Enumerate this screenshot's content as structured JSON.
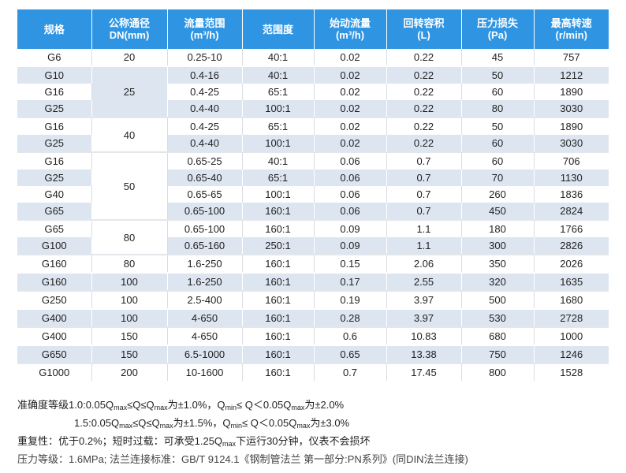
{
  "table": {
    "headers": [
      {
        "line1": "规格",
        "line2": ""
      },
      {
        "line1": "公称通径",
        "line2": "DN(mm)"
      },
      {
        "line1": "流量范围",
        "line2": "(m³/h)"
      },
      {
        "line1": "范围度",
        "line2": ""
      },
      {
        "line1": "始动流量",
        "line2": "(m³/h)"
      },
      {
        "line1": "回转容积",
        "line2": "(L)"
      },
      {
        "line1": "压力损失",
        "line2": "(Pa)"
      },
      {
        "line1": "最高转速",
        "line2": "(r/min)"
      }
    ],
    "groups": [
      {
        "dn": "20",
        "rows": [
          [
            "G6",
            "0.25-10",
            "40:1",
            "0.02",
            "0.22",
            "45",
            "757"
          ]
        ]
      },
      {
        "dn": "25",
        "rows": [
          [
            "G10",
            "0.4-16",
            "40:1",
            "0.02",
            "0.22",
            "50",
            "1212"
          ],
          [
            "G16",
            "0.4-25",
            "65:1",
            "0.02",
            "0.22",
            "60",
            "1890"
          ],
          [
            "G25",
            "0.4-40",
            "100:1",
            "0.02",
            "0.22",
            "80",
            "3030"
          ]
        ]
      },
      {
        "dn": "40",
        "rows": [
          [
            "G16",
            "0.4-25",
            "65:1",
            "0.02",
            "0.22",
            "50",
            "1890"
          ],
          [
            "G25",
            "0.4-40",
            "100:1",
            "0.02",
            "0.22",
            "60",
            "3030"
          ]
        ]
      },
      {
        "dn": "50",
        "rows": [
          [
            "G16",
            "0.65-25",
            "40:1",
            "0.06",
            "0.7",
            "60",
            "706"
          ],
          [
            "G25",
            "0.65-40",
            "65:1",
            "0.06",
            "0.7",
            "70",
            "1130"
          ],
          [
            "G40",
            "0.65-65",
            "100:1",
            "0.06",
            "0.7",
            "260",
            "1836"
          ],
          [
            "G65",
            "0.65-100",
            "160:1",
            "0.06",
            "0.7",
            "450",
            "2824"
          ]
        ]
      },
      {
        "dn": "80",
        "rows": [
          [
            "G65",
            "0.65-100",
            "160:1",
            "0.09",
            "1.1",
            "180",
            "1766"
          ],
          [
            "G100",
            "0.65-160",
            "250:1",
            "0.09",
            "1.1",
            "300",
            "2826"
          ]
        ]
      },
      {
        "dn": "80",
        "rows": [
          [
            "G160",
            "1.6-250",
            "160:1",
            "0.15",
            "2.06",
            "350",
            "2026"
          ]
        ]
      },
      {
        "dn": "100",
        "rows": [
          [
            "G160",
            "1.6-250",
            "160:1",
            "0.17",
            "2.55",
            "320",
            "1635"
          ]
        ]
      },
      {
        "dn": "100",
        "rows": [
          [
            "G250",
            "2.5-400",
            "160:1",
            "0.19",
            "3.97",
            "500",
            "1680"
          ]
        ]
      },
      {
        "dn": "100",
        "rows": [
          [
            "G400",
            "4-650",
            "160:1",
            "0.28",
            "3.97",
            "530",
            "2728"
          ]
        ]
      },
      {
        "dn": "150",
        "rows": [
          [
            "G400",
            "4-650",
            "160:1",
            "0.6",
            "10.83",
            "680",
            "1000"
          ]
        ]
      },
      {
        "dn": "150",
        "rows": [
          [
            "G650",
            "6.5-1000",
            "160:1",
            "0.65",
            "13.38",
            "750",
            "1246"
          ]
        ]
      },
      {
        "dn": "200",
        "rows": [
          [
            "G1000",
            "10-1600",
            "160:1",
            "0.7",
            "17.45",
            "800",
            "1528"
          ]
        ]
      }
    ]
  },
  "notes": {
    "accuracy": {
      "label": "准确度等级1.0:",
      "text1": "0.05Q",
      "sub1": "max",
      "text2": "≤Q≤Q",
      "sub2": "max",
      "text3": "为±1.0%，Q",
      "sub3": "min",
      "text4": "≤ Q＜0.05Q",
      "sub4": "max",
      "text5": "为±2.0%"
    },
    "accuracy2": {
      "label": "1.5:",
      "text1": "0.05Q",
      "sub1": "max",
      "text2": "≤Q≤Q",
      "sub2": "max",
      "text3": "为±1.5%，Q",
      "sub3": "min",
      "text4": "≤ Q＜0.05Q",
      "sub4": "max",
      "text5": "为±3.0%"
    },
    "repeatability": {
      "text1": "重复性：优于0.2%；短时过载：可承受1.25Q",
      "sub1": "max",
      "text2": "下运行30分钟，仪表不会损坏"
    },
    "pressure": "压力等级：1.6MPa; 法兰连接标准：GB/T 9124.1《钢制管法兰 第一部分:PN系列》(同DIN法兰连接)"
  }
}
